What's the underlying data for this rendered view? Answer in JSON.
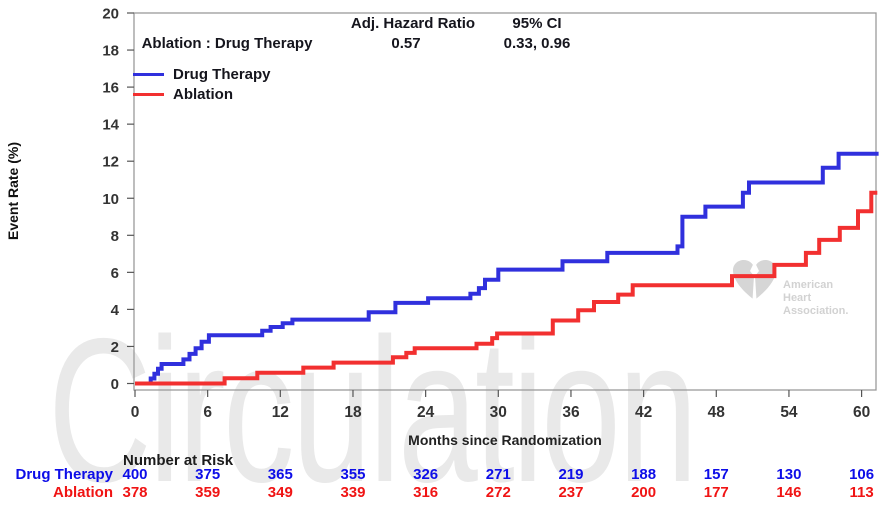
{
  "header": {
    "hr_label": "Adj. Hazard Ratio",
    "hr_value": "0.57",
    "ci_label": "95% CI",
    "ci_value": "0.33, 0.96",
    "comparison_label": "Ablation : Drug Therapy"
  },
  "legend": [
    {
      "label": "Drug Therapy",
      "color": "#3030dd"
    },
    {
      "label": "Ablation",
      "color": "#f23030"
    }
  ],
  "chart_data": {
    "type": "line",
    "subtype": "kaplan-meier-cumulative-incidence-steps",
    "xlabel": "Months since Randomization",
    "ylabel": "Event Rate (%)",
    "xlim": [
      0,
      61.5
    ],
    "xticks": [
      0,
      6,
      12,
      18,
      24,
      30,
      36,
      42,
      48,
      54,
      60
    ],
    "ylim": [
      0,
      20
    ],
    "yticks": [
      0,
      2,
      4,
      6,
      8,
      10,
      12,
      14,
      16,
      18,
      20
    ],
    "grid": false,
    "legend_position": "top-left-inside",
    "series": [
      {
        "name": "Drug Therapy",
        "color": "#3030dd",
        "end_month": 61.4,
        "steps": [
          [
            0,
            0
          ],
          [
            1.3,
            0.27
          ],
          [
            1.6,
            0.53
          ],
          [
            1.9,
            0.8
          ],
          [
            2.2,
            1.05
          ],
          [
            4.0,
            1.3
          ],
          [
            4.5,
            1.6
          ],
          [
            5.0,
            1.9
          ],
          [
            5.5,
            2.25
          ],
          [
            6.1,
            2.6
          ],
          [
            10.5,
            2.85
          ],
          [
            11.2,
            3.05
          ],
          [
            12.2,
            3.25
          ],
          [
            13.0,
            3.45
          ],
          [
            19.3,
            3.85
          ],
          [
            21.5,
            4.35
          ],
          [
            24.2,
            4.6
          ],
          [
            27.7,
            4.85
          ],
          [
            28.4,
            5.15
          ],
          [
            28.9,
            5.6
          ],
          [
            30.0,
            6.15
          ],
          [
            35.3,
            6.6
          ],
          [
            39.0,
            7.05
          ],
          [
            44.8,
            7.4
          ],
          [
            45.2,
            9.0
          ],
          [
            47.1,
            9.55
          ],
          [
            50.2,
            10.3
          ],
          [
            50.7,
            10.85
          ],
          [
            56.8,
            11.65
          ],
          [
            58.1,
            12.4
          ]
        ]
      },
      {
        "name": "Ablation",
        "color": "#f23030",
        "end_month": 61.3,
        "steps": [
          [
            0,
            0
          ],
          [
            7.4,
            0.28
          ],
          [
            10.1,
            0.58
          ],
          [
            13.9,
            0.86
          ],
          [
            16.4,
            1.13
          ],
          [
            21.3,
            1.42
          ],
          [
            22.4,
            1.65
          ],
          [
            23.1,
            1.9
          ],
          [
            28.2,
            2.15
          ],
          [
            29.5,
            2.45
          ],
          [
            29.9,
            2.7
          ],
          [
            34.5,
            3.4
          ],
          [
            36.6,
            3.95
          ],
          [
            37.9,
            4.4
          ],
          [
            39.9,
            4.8
          ],
          [
            41.1,
            5.3
          ],
          [
            49.3,
            5.8
          ],
          [
            52.8,
            6.4
          ],
          [
            55.4,
            7.05
          ],
          [
            56.5,
            7.75
          ],
          [
            58.2,
            8.4
          ],
          [
            59.7,
            9.3
          ],
          [
            60.8,
            10.3
          ]
        ]
      }
    ]
  },
  "risk_table": {
    "title": "Number at Risk",
    "months": [
      0,
      6,
      12,
      18,
      24,
      30,
      36,
      42,
      48,
      54,
      60
    ],
    "rows": [
      {
        "label": "Drug Therapy",
        "color": "#0d0de8",
        "values": [
          400,
          375,
          365,
          355,
          326,
          271,
          219,
          188,
          157,
          130,
          106
        ]
      },
      {
        "label": "Ablation",
        "color": "#f01414",
        "values": [
          378,
          359,
          349,
          339,
          316,
          272,
          237,
          200,
          177,
          146,
          113
        ]
      }
    ]
  },
  "watermarks": {
    "journal": "Circulation",
    "aha_lines": [
      "American",
      "Heart",
      "Association."
    ]
  },
  "style_colors": {
    "axis_box": "#9a9a9a",
    "tick": "#555555",
    "tick_label": "#333333",
    "watermark_text": "#e9e9e9",
    "aha_gray": "#d6d6d6"
  }
}
